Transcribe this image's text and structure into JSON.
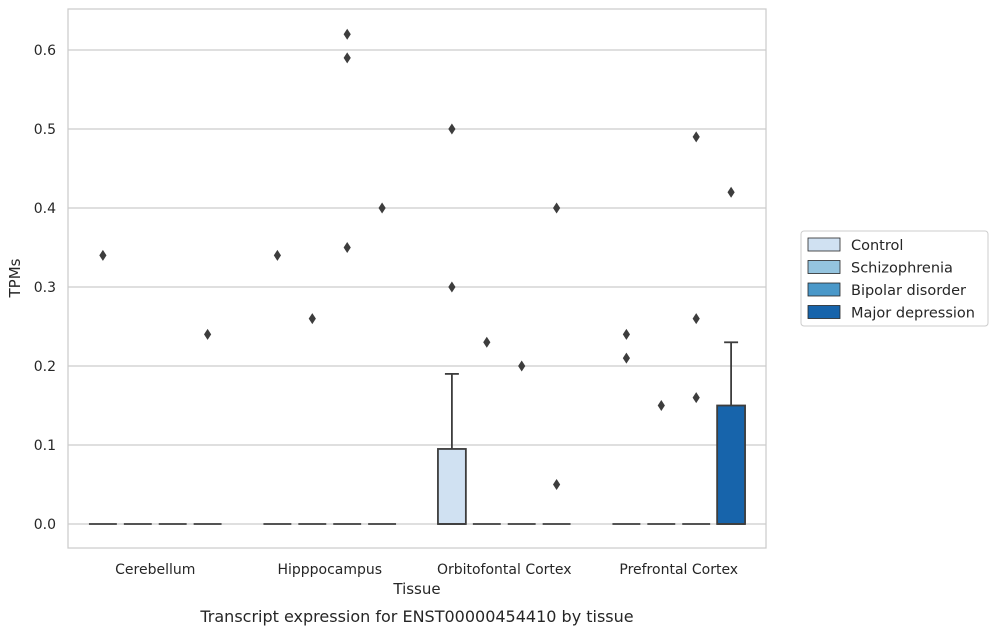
{
  "chart_data": {
    "type": "box",
    "title": "",
    "caption": "Transcript expression for ENST00000454410 by tissue",
    "xlabel": "Tissue",
    "ylabel": "TPMs",
    "ylim": [
      -0.03,
      0.655
    ],
    "yticks": [
      0.0,
      0.1,
      0.2,
      0.3,
      0.4,
      0.5,
      0.6
    ],
    "ytick_labels": [
      "0.0",
      "0.1",
      "0.2",
      "0.3",
      "0.4",
      "0.5",
      "0.6"
    ],
    "grid": "horizontal",
    "legend_position": "right",
    "categories": [
      "Cerebellum",
      "Hipppocampus",
      "Orbitofontal Cortex",
      "Prefrontal Cortex"
    ],
    "series": [
      {
        "name": "Control",
        "color": "#d0e1f2",
        "boxes": [
          {
            "q1": 0,
            "median": 0,
            "q3": 0,
            "whisker_low": 0,
            "whisker_high": 0,
            "outliers": [
              0.34
            ]
          },
          {
            "q1": 0,
            "median": 0,
            "q3": 0,
            "whisker_low": 0,
            "whisker_high": 0,
            "outliers": [
              0.34
            ]
          },
          {
            "q1": 0,
            "median": 0,
            "q3": 0.095,
            "whisker_low": 0,
            "whisker_high": 0.19,
            "outliers": [
              0.3,
              0.5
            ]
          },
          {
            "q1": 0,
            "median": 0,
            "q3": 0,
            "whisker_low": 0,
            "whisker_high": 0,
            "outliers": [
              0.24,
              0.21
            ]
          }
        ]
      },
      {
        "name": "Schizophrenia",
        "color": "#94c4df",
        "boxes": [
          {
            "q1": 0,
            "median": 0,
            "q3": 0,
            "whisker_low": 0,
            "whisker_high": 0,
            "outliers": []
          },
          {
            "q1": 0,
            "median": 0,
            "q3": 0,
            "whisker_low": 0,
            "whisker_high": 0,
            "outliers": [
              0.26
            ]
          },
          {
            "q1": 0,
            "median": 0,
            "q3": 0,
            "whisker_low": 0,
            "whisker_high": 0,
            "outliers": [
              0.23
            ]
          },
          {
            "q1": 0,
            "median": 0,
            "q3": 0,
            "whisker_low": 0,
            "whisker_high": 0,
            "outliers": [
              0.15
            ]
          }
        ]
      },
      {
        "name": "Bipolar disorder",
        "color": "#4a98c9",
        "boxes": [
          {
            "q1": 0,
            "median": 0,
            "q3": 0,
            "whisker_low": 0,
            "whisker_high": 0,
            "outliers": []
          },
          {
            "q1": 0,
            "median": 0,
            "q3": 0,
            "whisker_low": 0,
            "whisker_high": 0,
            "outliers": [
              0.62,
              0.59,
              0.35
            ]
          },
          {
            "q1": 0,
            "median": 0,
            "q3": 0,
            "whisker_low": 0,
            "whisker_high": 0,
            "outliers": [
              0.2
            ]
          },
          {
            "q1": 0,
            "median": 0,
            "q3": 0,
            "whisker_low": 0,
            "whisker_high": 0,
            "outliers": [
              0.49,
              0.26,
              0.16
            ]
          }
        ]
      },
      {
        "name": "Major depression",
        "color": "#1764ab",
        "boxes": [
          {
            "q1": 0,
            "median": 0,
            "q3": 0,
            "whisker_low": 0,
            "whisker_high": 0,
            "outliers": [
              0.24
            ]
          },
          {
            "q1": 0,
            "median": 0,
            "q3": 0,
            "whisker_low": 0,
            "whisker_high": 0,
            "outliers": [
              0.4
            ]
          },
          {
            "q1": 0,
            "median": 0,
            "q3": 0,
            "whisker_low": 0,
            "whisker_high": 0,
            "outliers": [
              0.4,
              0.05
            ]
          },
          {
            "q1": 0,
            "median": 0,
            "q3": 0.15,
            "whisker_low": 0,
            "whisker_high": 0.23,
            "outliers": [
              0.42
            ]
          }
        ]
      }
    ]
  }
}
